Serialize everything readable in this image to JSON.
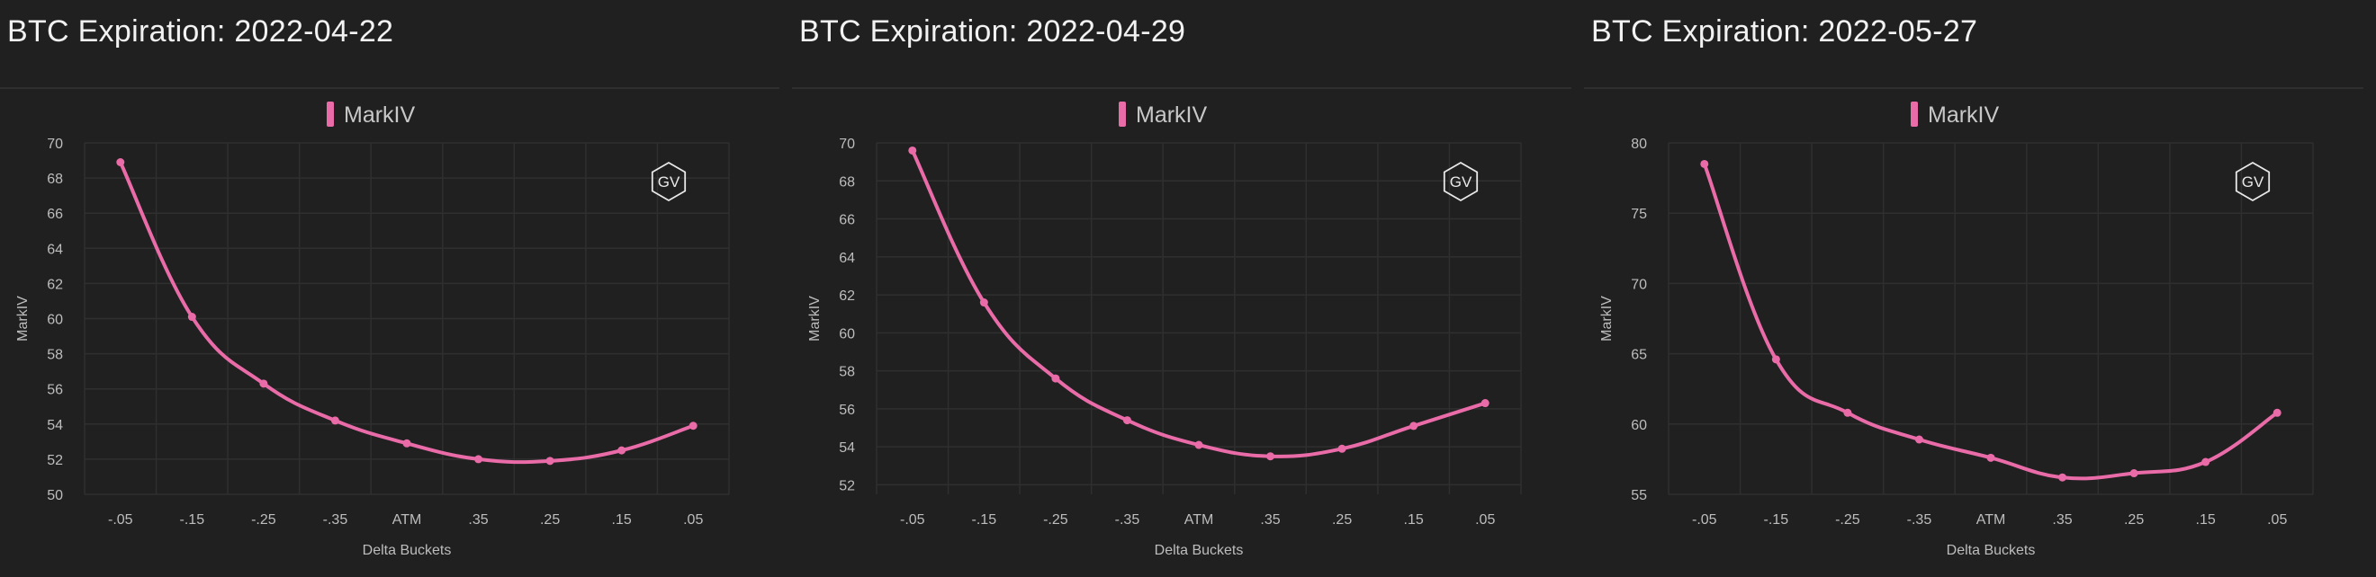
{
  "colors": {
    "background": "#202020",
    "series": "#e96ba8",
    "grid": "#2f2f2f"
  },
  "watermark_icon": "gv-hexagon-logo",
  "panels": [
    {
      "title": "BTC Expiration: 2022-04-22"
    },
    {
      "title": "BTC Expiration: 2022-04-29"
    },
    {
      "title": "BTC Expiration: 2022-05-27"
    }
  ],
  "chart_data": [
    {
      "type": "line",
      "title": "BTC Expiration: 2022-04-22",
      "xlabel": "Delta Buckets",
      "ylabel": "MarkIV",
      "categories": [
        "-.05",
        "-.15",
        "-.25",
        "-.35",
        "ATM",
        ".35",
        ".25",
        ".15",
        ".05"
      ],
      "series": [
        {
          "name": "MarkIV",
          "values": [
            68.9,
            60.1,
            56.3,
            54.2,
            52.9,
            52.0,
            51.9,
            52.5,
            53.9
          ]
        }
      ],
      "ylim": [
        50,
        70
      ],
      "yticks": [
        50,
        52,
        54,
        56,
        58,
        60,
        62,
        64,
        66,
        68,
        70
      ],
      "grid": true,
      "legend": "top-center"
    },
    {
      "type": "line",
      "title": "BTC Expiration: 2022-04-29",
      "xlabel": "Delta Buckets",
      "ylabel": "MarkIV",
      "categories": [
        "-.05",
        "-.15",
        "-.25",
        "-.35",
        "ATM",
        ".35",
        ".25",
        ".15",
        ".05"
      ],
      "series": [
        {
          "name": "MarkIV",
          "values": [
            69.6,
            61.6,
            57.6,
            55.4,
            54.1,
            53.5,
            53.9,
            55.1,
            56.3
          ]
        }
      ],
      "ylim": [
        51.5,
        70
      ],
      "yticks": [
        52,
        54,
        56,
        58,
        60,
        62,
        64,
        66,
        68,
        70
      ],
      "grid": true,
      "legend": "top-center"
    },
    {
      "type": "line",
      "title": "BTC Expiration: 2022-05-27",
      "xlabel": "Delta Buckets",
      "ylabel": "MarkIV",
      "categories": [
        "-.05",
        "-.15",
        "-.25",
        "-.35",
        "ATM",
        ".35",
        ".25",
        ".15",
        ".05"
      ],
      "series": [
        {
          "name": "MarkIV",
          "values": [
            78.5,
            64.6,
            60.8,
            58.9,
            57.6,
            56.2,
            56.5,
            57.3,
            60.8
          ]
        }
      ],
      "ylim": [
        55,
        80
      ],
      "yticks": [
        55,
        60,
        65,
        70,
        75,
        80
      ],
      "grid": true,
      "legend": "top-center"
    }
  ]
}
